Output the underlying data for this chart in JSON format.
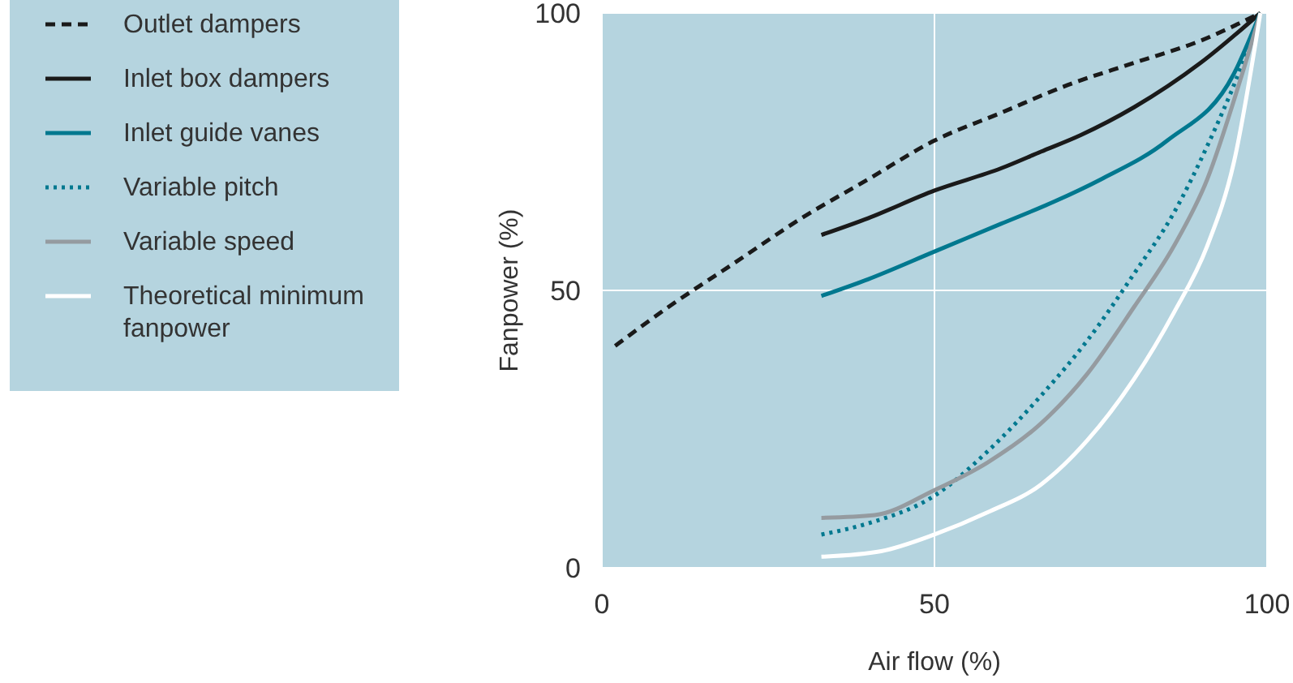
{
  "chart_data": {
    "type": "line",
    "xlabel": "Air flow (%)",
    "ylabel": "Fanpower (%)",
    "xlim": [
      0,
      100
    ],
    "ylim": [
      0,
      100
    ],
    "xticks": [
      0,
      50,
      100
    ],
    "yticks": [
      0,
      50,
      100
    ],
    "grid": true,
    "legend": "left",
    "series": [
      {
        "name": "Outlet dampers",
        "color": "#1a1a1a",
        "line_style": "dashed",
        "x": [
          2,
          10,
          20,
          30,
          40,
          50,
          60,
          70,
          80,
          90,
          99
        ],
        "values": [
          40,
          47,
          55,
          63,
          70,
          77,
          82,
          87,
          91,
          95,
          100
        ]
      },
      {
        "name": "Inlet box dampers",
        "color": "#1a1a1a",
        "line_style": "solid",
        "x": [
          33,
          40,
          50,
          60,
          66,
          72,
          80,
          90,
          99
        ],
        "values": [
          60,
          63,
          68,
          72,
          75,
          78,
          83,
          91,
          100
        ]
      },
      {
        "name": "Inlet guide vanes",
        "color": "#00788f",
        "line_style": "solid",
        "x": [
          33,
          40,
          50,
          60,
          68,
          75,
          85,
          95,
          99
        ],
        "values": [
          49,
          52,
          57,
          62,
          66,
          70,
          77,
          89,
          100
        ]
      },
      {
        "name": "Variable pitch",
        "color": "#00788f",
        "line_style": "dotted",
        "x": [
          33,
          40,
          50,
          58,
          66,
          73,
          80,
          86,
          91,
          96,
          99
        ],
        "values": [
          6,
          8,
          13,
          21,
          31,
          41,
          53,
          64,
          76,
          90,
          100
        ]
      },
      {
        "name": "Variable speed",
        "color": "#959ba0",
        "line_style": "solid",
        "x": [
          33,
          41,
          50,
          58,
          66,
          73,
          80,
          86,
          91,
          96,
          99
        ],
        "values": [
          9,
          9.5,
          14,
          19,
          26,
          35,
          47,
          58,
          70,
          88,
          100
        ]
      },
      {
        "name": "Theoretical minimum fanpower",
        "color": "#ffffff",
        "line_style": "solid",
        "x": [
          33,
          42,
          50,
          58,
          66,
          73,
          80,
          86,
          91,
          95,
          99
        ],
        "values": [
          2,
          3,
          6,
          10,
          15,
          23,
          34,
          46,
          58,
          73,
          100
        ]
      }
    ]
  }
}
